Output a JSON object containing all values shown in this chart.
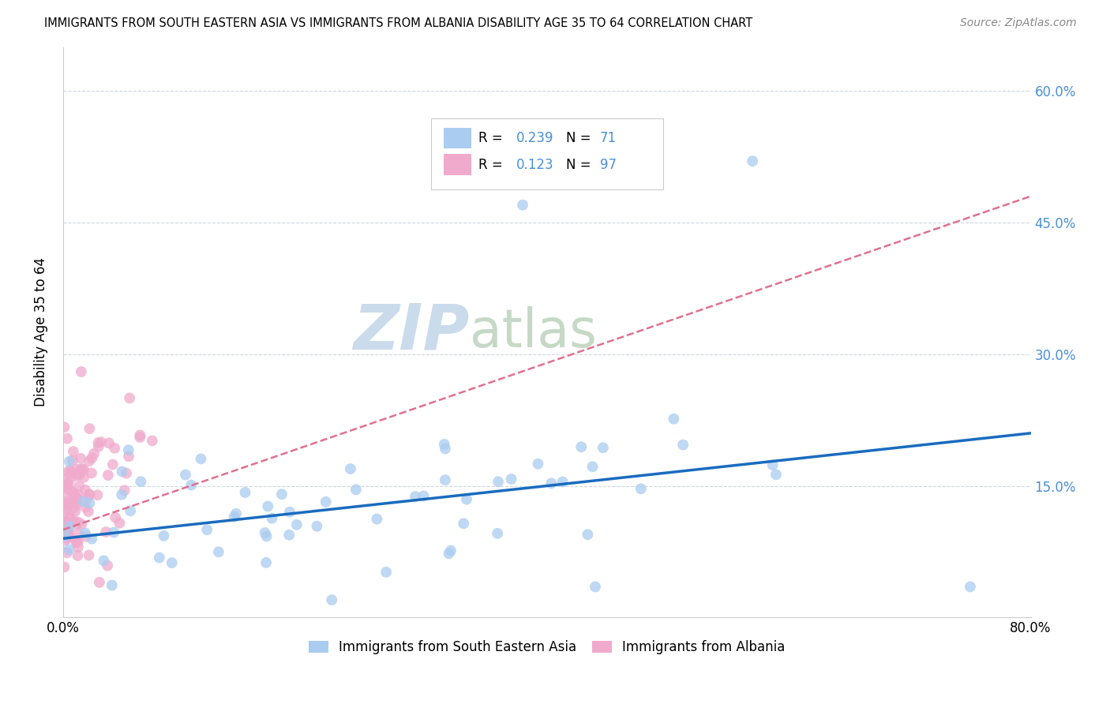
{
  "title": "IMMIGRANTS FROM SOUTH EASTERN ASIA VS IMMIGRANTS FROM ALBANIA DISABILITY AGE 35 TO 64 CORRELATION CHART",
  "source": "Source: ZipAtlas.com",
  "ylabel": "Disability Age 35 to 64",
  "xlim": [
    0.0,
    0.8
  ],
  "ylim": [
    0.0,
    0.65
  ],
  "blue_R": 0.239,
  "blue_N": 71,
  "pink_R": 0.123,
  "pink_N": 97,
  "blue_label": "Immigrants from South Eastern Asia",
  "pink_label": "Immigrants from Albania",
  "blue_color": "#aaccf0",
  "pink_color": "#f0aacc",
  "blue_line_color": "#1a6bbf",
  "pink_line_color": "#e07090",
  "legend_R_color": "#4a90d9",
  "legend_N_color": "#4a90d9",
  "watermark_zip": "ZIP",
  "watermark_atlas": "atlas",
  "watermark_color_zip": "#c5d8ea",
  "watermark_color_atlas": "#c0d5c0",
  "background_color": "#ffffff",
  "grid_color": "#d0d8e0",
  "right_ytick_color": "#4a90d9",
  "seed": 7
}
